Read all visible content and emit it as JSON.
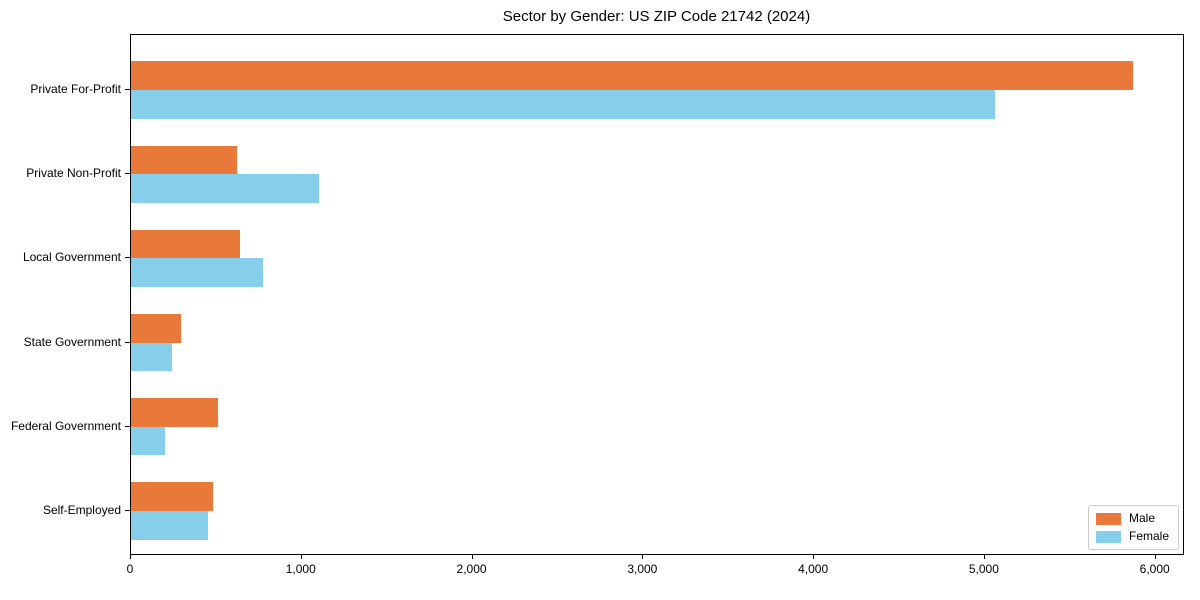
{
  "chart_data": {
    "type": "bar",
    "orientation": "horizontal",
    "title": "Sector by Gender: US ZIP Code 21742 (2024)",
    "categories": [
      "Private For-Profit",
      "Private Non-Profit",
      "Local Government",
      "State Government",
      "Federal Government",
      "Self-Employed"
    ],
    "series": [
      {
        "name": "Male",
        "color": "#E8793B",
        "values": [
          5870,
          620,
          640,
          290,
          510,
          480
        ]
      },
      {
        "name": "Female",
        "color": "#87CEEB",
        "values": [
          5060,
          1100,
          770,
          240,
          200,
          450
        ]
      }
    ],
    "xlabel": "",
    "ylabel": "",
    "xlim": [
      0,
      6160
    ],
    "xticks": [
      0,
      1000,
      2000,
      3000,
      4000,
      5000,
      6000
    ],
    "xtick_labels": [
      "0",
      "1,000",
      "2,000",
      "3,000",
      "4,000",
      "5,000",
      "6,000"
    ],
    "grid": false,
    "legend_position": "lower right",
    "frame_color": "#000000",
    "background_color": "#ffffff"
  }
}
